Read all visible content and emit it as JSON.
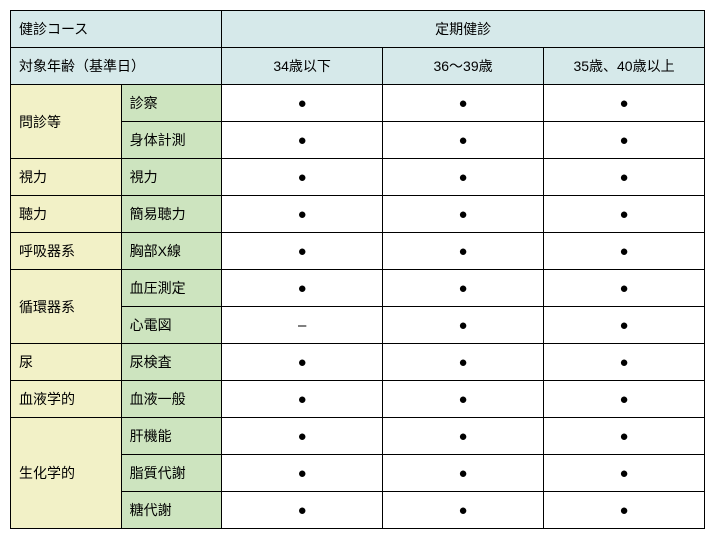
{
  "header": {
    "course_label": "健診コース",
    "course_value": "定期健診",
    "age_label": "対象年齢（基準日）",
    "age_cols": [
      "34歳以下",
      "36～39歳",
      "35歳、40歳以上"
    ]
  },
  "dot": "●",
  "dash": "–",
  "rows": [
    {
      "category": "問診等",
      "items": [
        {
          "name": "診察",
          "marks": [
            "●",
            "●",
            "●"
          ]
        },
        {
          "name": "身体計測",
          "marks": [
            "●",
            "●",
            "●"
          ]
        }
      ]
    },
    {
      "category": "視力",
      "items": [
        {
          "name": "視力",
          "marks": [
            "●",
            "●",
            "●"
          ]
        }
      ]
    },
    {
      "category": "聴力",
      "items": [
        {
          "name": "簡易聴力",
          "marks": [
            "●",
            "●",
            "●"
          ]
        }
      ]
    },
    {
      "category": "呼吸器系",
      "items": [
        {
          "name": "胸部X線",
          "marks": [
            "●",
            "●",
            "●"
          ]
        }
      ]
    },
    {
      "category": "循環器系",
      "items": [
        {
          "name": "血圧測定",
          "marks": [
            "●",
            "●",
            "●"
          ]
        },
        {
          "name": "心電図",
          "marks": [
            "–",
            "●",
            "●"
          ]
        }
      ]
    },
    {
      "category": "尿",
      "items": [
        {
          "name": "尿検査",
          "marks": [
            "●",
            "●",
            "●"
          ]
        }
      ]
    },
    {
      "category": "血液学的",
      "items": [
        {
          "name": "血液一般",
          "marks": [
            "●",
            "●",
            "●"
          ]
        }
      ]
    },
    {
      "category": "生化学的",
      "items": [
        {
          "name": "肝機能",
          "marks": [
            "●",
            "●",
            "●"
          ]
        },
        {
          "name": "脂質代謝",
          "marks": [
            "●",
            "●",
            "●"
          ]
        },
        {
          "name": "糖代謝",
          "marks": [
            "●",
            "●",
            "●"
          ]
        }
      ]
    }
  ]
}
